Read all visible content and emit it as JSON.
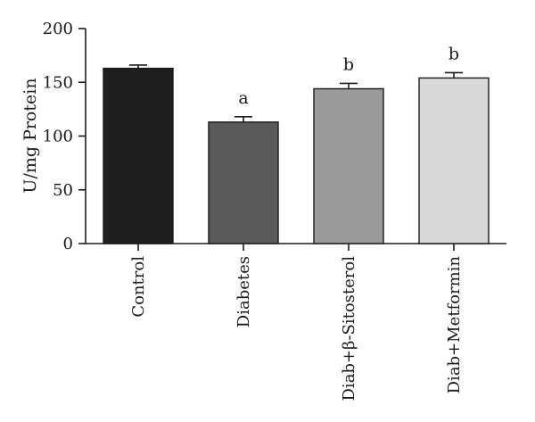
{
  "chart_data": {
    "type": "bar",
    "ylabel": "U/mg Protein",
    "xlabel": "",
    "ylim": [
      0,
      200
    ],
    "yticks": [
      0,
      50,
      100,
      150,
      200
    ],
    "categories": [
      "Control",
      "Diabetes",
      "Diab+β-Sitosterol",
      "Diab+Metformin"
    ],
    "values": [
      163,
      113,
      144,
      154
    ],
    "errors": [
      3,
      5,
      5,
      5
    ],
    "annotations": [
      "",
      "a",
      "b",
      "b"
    ],
    "bar_colors": [
      "#1e1e1e",
      "#5a5a5a",
      "#9a9a9a",
      "#d8d8d8"
    ],
    "grid": false,
    "legend": "none"
  }
}
